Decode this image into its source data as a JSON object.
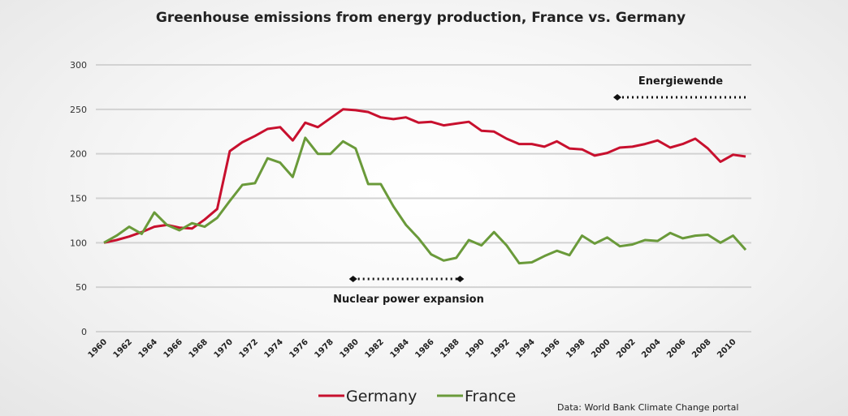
{
  "chart_data": {
    "type": "line",
    "title": "Greenhouse emissions from energy production, France vs. Germany",
    "xlabel": "",
    "ylabel": "",
    "ylim": [
      0,
      300
    ],
    "yticks": [
      0,
      50,
      100,
      150,
      200,
      250,
      300
    ],
    "xlim": [
      1960,
      2011
    ],
    "xtick_labels": [
      "1960",
      "1962",
      "1964",
      "1966",
      "1968",
      "1970",
      "1972",
      "1974",
      "1976",
      "1978",
      "1980",
      "1982",
      "1984",
      "1986",
      "1988",
      "1990",
      "1992",
      "1994",
      "1996",
      "1998",
      "2000",
      "2002",
      "2004",
      "2006",
      "2008",
      "2010"
    ],
    "grid": true,
    "legend_position": "bottom-center",
    "x": [
      1960,
      1961,
      1962,
      1963,
      1964,
      1965,
      1966,
      1967,
      1968,
      1969,
      1970,
      1971,
      1972,
      1973,
      1974,
      1975,
      1976,
      1977,
      1978,
      1979,
      1980,
      1981,
      1982,
      1983,
      1984,
      1985,
      1986,
      1987,
      1988,
      1989,
      1990,
      1991,
      1992,
      1993,
      1994,
      1995,
      1996,
      1997,
      1998,
      1999,
      2000,
      2001,
      2002,
      2003,
      2004,
      2005,
      2006,
      2007,
      2008,
      2009,
      2010,
      2011
    ],
    "series": [
      {
        "name": "Germany",
        "color": "#c8102e",
        "values": [
          100,
          103,
          107,
          112,
          118,
          120,
          117,
          116,
          126,
          138,
          203,
          213,
          220,
          228,
          230,
          215,
          235,
          230,
          240,
          250,
          249,
          247,
          241,
          239,
          241,
          235,
          236,
          232,
          234,
          236,
          226,
          225,
          217,
          211,
          211,
          208,
          214,
          206,
          205,
          198,
          201,
          207,
          208,
          211,
          215,
          207,
          211,
          217,
          206,
          191,
          199,
          197
        ]
      },
      {
        "name": "France",
        "color": "#6a9a3a",
        "values": [
          100,
          108,
          118,
          110,
          134,
          120,
          114,
          122,
          118,
          128,
          147,
          165,
          167,
          195,
          190,
          174,
          218,
          200,
          200,
          214,
          206,
          166,
          166,
          141,
          120,
          105,
          87,
          80,
          83,
          103,
          97,
          112,
          97,
          77,
          78,
          85,
          91,
          86,
          108,
          99,
          106,
          96,
          98,
          103,
          102,
          111,
          105,
          108,
          109,
          100,
          108,
          92
        ]
      }
    ],
    "annotations": [
      {
        "label": "Energiewende",
        "start": 2000.8,
        "end": 2011,
        "value": 265,
        "style": "dotted-arrow-open-end"
      },
      {
        "label": "Nuclear power expansion",
        "start": 1979.8,
        "end": 1988.3,
        "value": 60,
        "style": "dotted-both-ends"
      }
    ],
    "source": "Data: World Bank Climate Change portal"
  }
}
